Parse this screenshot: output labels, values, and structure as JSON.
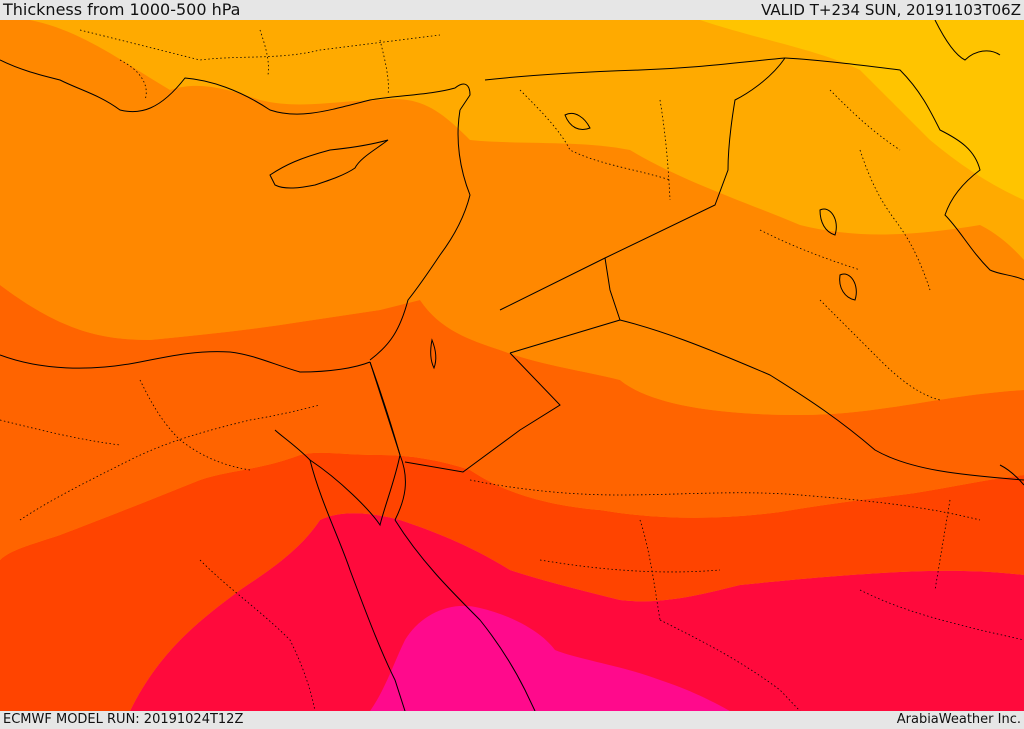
{
  "header": {
    "title": "Thickness from 1000-500 hPa",
    "valid": "VALID T+234 SUN, 20191103T06Z"
  },
  "footer": {
    "model_run": "ECMWF MODEL RUN: 20191024T12Z",
    "credit": "ArabiaWeather Inc."
  },
  "colors": {
    "band_1": "#ffc400",
    "band_2": "#ffaa00",
    "band_3": "#ff8800",
    "band_4": "#ff6400",
    "band_5": "#ff4400",
    "band_6": "#ff0a3c",
    "band_7": "#ff0a8c",
    "border": "#000000"
  }
}
